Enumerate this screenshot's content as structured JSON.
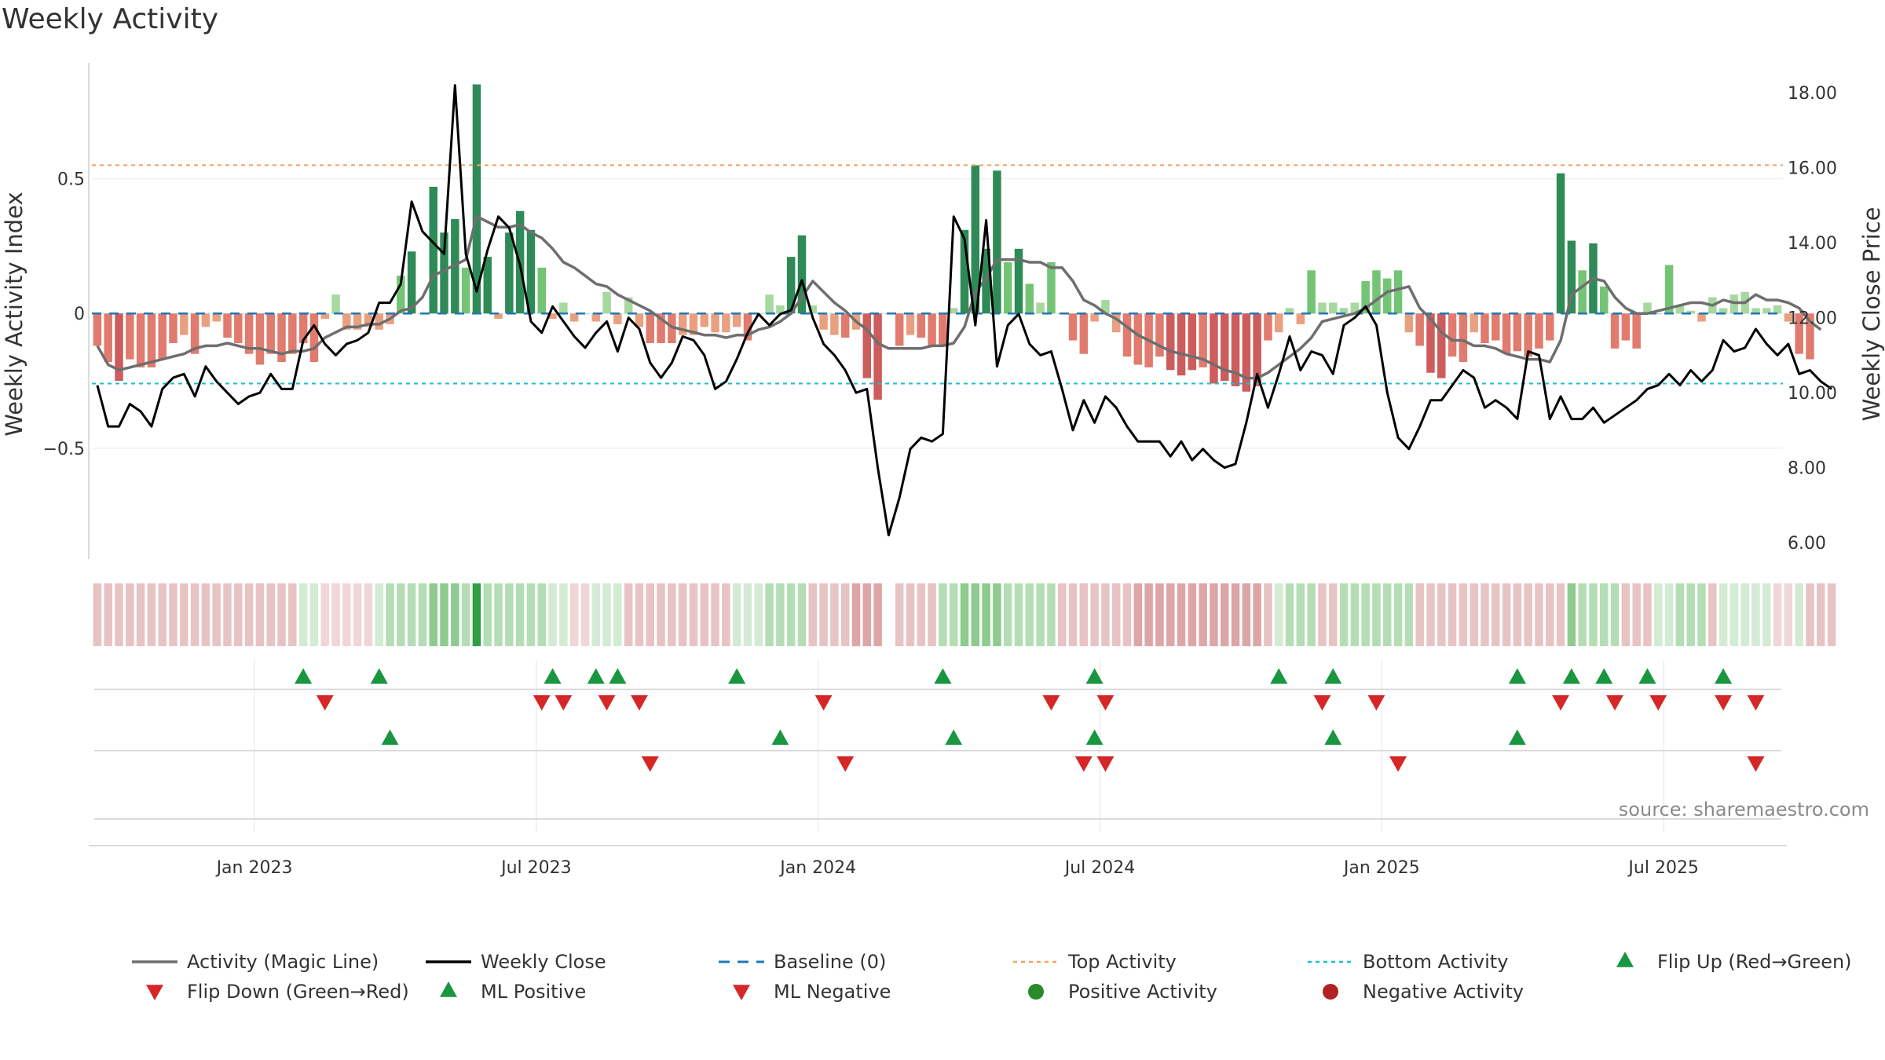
{
  "chart_data": {
    "type": "bar+line",
    "title": "Weekly Activity",
    "ylabel": "Weekly Activity Index",
    "y2label": "Weekly Close Price",
    "ylim": [
      -0.92,
      0.93
    ],
    "y2lim": [
      5.5,
      18.8
    ],
    "yticks": [
      {
        "v": 0.5,
        "label": "0.5"
      },
      {
        "v": 0,
        "label": "0"
      },
      {
        "v": -0.5,
        "label": "−0.5"
      }
    ],
    "y2ticks": [
      {
        "v": 18,
        "label": "18.00"
      },
      {
        "v": 16,
        "label": "16.00"
      },
      {
        "v": 14,
        "label": "14.00"
      },
      {
        "v": 12,
        "label": "12.00"
      },
      {
        "v": 10,
        "label": "10.00"
      },
      {
        "v": 8,
        "label": "8.00"
      },
      {
        "v": 6,
        "label": "6.00"
      }
    ],
    "xticks": [
      {
        "week": 15,
        "label": "Jan 2023"
      },
      {
        "week": 41,
        "label": "Jul 2023"
      },
      {
        "week": 67,
        "label": "Jan 2024"
      },
      {
        "week": 93,
        "label": "Jul 2024"
      },
      {
        "week": 119,
        "label": "Jan 2025"
      },
      {
        "week": 145,
        "label": "Jul 2025"
      }
    ],
    "x_range_weeks": [
      0,
      156
    ],
    "top_activity": 0.55,
    "bottom_activity": -0.26,
    "baseline": 0,
    "weekly_activity": [
      -0.12,
      -0.18,
      -0.25,
      -0.17,
      -0.2,
      -0.2,
      -0.17,
      -0.11,
      -0.08,
      -0.15,
      -0.05,
      -0.03,
      -0.09,
      -0.11,
      -0.15,
      -0.19,
      -0.15,
      -0.18,
      -0.15,
      -0.11,
      -0.18,
      -0.02,
      0.07,
      -0.06,
      -0.06,
      -0.05,
      -0.06,
      -0.04,
      0.14,
      0.23,
      0.0,
      0.47,
      0.3,
      0.35,
      0.17,
      0.85,
      0.21,
      -0.02,
      0.3,
      0.38,
      0.31,
      0.17,
      -0.02,
      0.04,
      -0.03,
      0.0,
      -0.03,
      0.08,
      -0.04,
      0.06,
      -0.05,
      -0.11,
      -0.11,
      -0.11,
      -0.08,
      -0.08,
      -0.05,
      -0.07,
      -0.07,
      -0.05,
      -0.1,
      0.0,
      0.07,
      0.03,
      0.21,
      0.29,
      0.03,
      -0.06,
      -0.08,
      -0.09,
      -0.06,
      -0.24,
      -0.32,
      0,
      -0.12,
      -0.08,
      -0.09,
      -0.12,
      -0.12,
      0.02,
      0.31,
      0.55,
      0.24,
      0.53,
      0.19,
      0.24,
      0.11,
      0.04,
      0.19,
      0.0,
      -0.1,
      -0.15,
      -0.03,
      0.05,
      -0.07,
      -0.16,
      -0.19,
      -0.2,
      -0.16,
      -0.21,
      -0.23,
      -0.21,
      -0.2,
      -0.26,
      -0.25,
      -0.27,
      -0.29,
      -0.27,
      -0.1,
      -0.07,
      0.02,
      -0.04,
      0.16,
      0.04,
      0.04,
      0.02,
      0.04,
      0.12,
      0.16,
      0.13,
      0.16,
      -0.07,
      -0.12,
      -0.22,
      -0.24,
      -0.16,
      -0.18,
      -0.07,
      -0.11,
      -0.1,
      -0.15,
      -0.14,
      -0.16,
      -0.13,
      -0.1,
      0.52,
      0.27,
      0.16,
      0.26,
      0.1,
      -0.13,
      -0.1,
      -0.13,
      0.04,
      0.0,
      0.18,
      0.03,
      0.01,
      -0.03,
      0.06,
      0.02,
      0.07,
      0.08,
      0.02,
      0.02,
      0.03,
      -0.03,
      -0.15,
      -0.17
    ],
    "magic_line": [
      -0.12,
      -0.19,
      -0.21,
      -0.2,
      -0.19,
      -0.18,
      -0.17,
      -0.16,
      -0.15,
      -0.13,
      -0.12,
      -0.12,
      -0.11,
      -0.12,
      -0.13,
      -0.13,
      -0.14,
      -0.15,
      -0.14,
      -0.14,
      -0.13,
      -0.09,
      -0.07,
      -0.05,
      -0.05,
      -0.04,
      -0.04,
      -0.02,
      0.01,
      0.02,
      0.06,
      0.14,
      0.16,
      0.18,
      0.2,
      0.36,
      0.34,
      0.32,
      0.32,
      0.33,
      0.3,
      0.28,
      0.24,
      0.19,
      0.17,
      0.14,
      0.11,
      0.1,
      0.07,
      0.05,
      0.03,
      0.01,
      -0.02,
      -0.05,
      -0.06,
      -0.07,
      -0.08,
      -0.08,
      -0.09,
      -0.08,
      -0.08,
      -0.06,
      -0.05,
      -0.03,
      0.0,
      0.06,
      0.12,
      0.08,
      0.04,
      0.01,
      -0.03,
      -0.06,
      -0.11,
      -0.13,
      -0.13,
      -0.13,
      -0.13,
      -0.12,
      -0.12,
      -0.11,
      -0.05,
      0.08,
      0.13,
      0.2,
      0.2,
      0.2,
      0.19,
      0.19,
      0.17,
      0.17,
      0.12,
      0.05,
      0.03,
      0.0,
      -0.02,
      -0.05,
      -0.08,
      -0.1,
      -0.12,
      -0.14,
      -0.15,
      -0.16,
      -0.17,
      -0.19,
      -0.21,
      -0.22,
      -0.24,
      -0.24,
      -0.22,
      -0.19,
      -0.16,
      -0.13,
      -0.09,
      -0.03,
      -0.02,
      -0.01,
      0.0,
      0.02,
      0.05,
      0.08,
      0.09,
      0.1,
      0.02,
      -0.02,
      -0.07,
      -0.1,
      -0.1,
      -0.12,
      -0.12,
      -0.13,
      -0.15,
      -0.16,
      -0.17,
      -0.17,
      -0.18,
      -0.1,
      0.07,
      0.1,
      0.13,
      0.12,
      0.06,
      0.02,
      0.0,
      0.0,
      0.01,
      0.02,
      0.03,
      0.04,
      0.04,
      0.03,
      0.05,
      0.04,
      0.04,
      0.07,
      0.05,
      0.05,
      0.04,
      0.02,
      -0.03,
      -0.06
    ],
    "weekly_close": [
      10.2,
      9.1,
      9.1,
      9.7,
      9.5,
      9.1,
      10.1,
      10.4,
      10.5,
      9.9,
      10.7,
      10.3,
      10.0,
      9.7,
      9.9,
      10.0,
      10.5,
      10.1,
      10.1,
      11.4,
      11.8,
      11.3,
      11.0,
      11.3,
      11.4,
      11.6,
      12.4,
      12.4,
      12.9,
      15.1,
      14.3,
      14.0,
      13.7,
      18.2,
      13.7,
      12.7,
      13.8,
      14.7,
      14.4,
      13.4,
      11.9,
      11.6,
      12.3,
      11.9,
      11.5,
      11.2,
      11.6,
      11.9,
      11.1,
      12.0,
      11.7,
      10.8,
      10.4,
      10.8,
      11.5,
      11.4,
      11.0,
      10.1,
      10.3,
      10.9,
      11.6,
      12.1,
      11.8,
      12.1,
      12.2,
      13.0,
      12.0,
      11.3,
      11.0,
      10.6,
      10.0,
      10.1,
      8.0,
      6.2,
      7.2,
      8.5,
      8.8,
      8.7,
      8.9,
      14.7,
      14.1,
      11.8,
      14.6,
      10.7,
      11.8,
      12.1,
      11.3,
      11.0,
      11.1,
      10.1,
      9.0,
      9.8,
      9.2,
      9.9,
      9.6,
      9.1,
      8.7,
      8.7,
      8.7,
      8.3,
      8.7,
      8.2,
      8.5,
      8.2,
      8.0,
      8.1,
      9.2,
      10.5,
      9.6,
      10.5,
      11.5,
      10.6,
      11.1,
      11.0,
      10.5,
      11.8,
      12.0,
      12.3,
      11.8,
      10.0,
      8.8,
      8.5,
      9.1,
      9.8,
      9.8,
      10.2,
      10.6,
      10.4,
      9.6,
      9.8,
      9.6,
      9.3,
      11.1,
      11.0,
      9.3,
      9.9,
      9.3,
      9.3,
      9.6,
      9.2,
      9.4,
      9.6,
      9.8,
      10.1,
      10.2,
      10.5,
      10.2,
      10.6,
      10.3,
      10.6,
      11.4,
      11.1,
      11.2,
      11.7,
      11.3,
      11.0,
      11.3,
      10.5,
      10.6,
      10.3,
      10.1
    ],
    "heat_strip": [
      -2,
      -2,
      -2,
      -2,
      -2,
      -2,
      -2,
      -2,
      -2,
      -2,
      -2,
      -2,
      -2,
      -2,
      -2,
      -2,
      -2,
      -2,
      -2,
      1,
      1,
      -1,
      -1,
      -1,
      -1,
      -1,
      1,
      2,
      2,
      2,
      2,
      3,
      3,
      3,
      2,
      4,
      2,
      2,
      2,
      2,
      2,
      2,
      1,
      1,
      -1,
      -1,
      1,
      1,
      1,
      -2,
      -2,
      -2,
      -2,
      -2,
      -2,
      -2,
      -2,
      -2,
      -2,
      1,
      1,
      1,
      2,
      2,
      2,
      2,
      -2,
      -2,
      -2,
      -2,
      -3,
      -3,
      -3,
      null,
      -2,
      -2,
      -2,
      -2,
      2,
      2,
      3,
      3,
      3,
      3,
      2,
      2,
      2,
      2,
      2,
      -2,
      -2,
      -2,
      -2,
      -2,
      -2,
      -2,
      -3,
      -3,
      -3,
      -3,
      -3,
      -3,
      -3,
      -3,
      -3,
      -3,
      -3,
      -3,
      -2,
      1,
      2,
      2,
      2,
      -2,
      -2,
      2,
      2,
      2,
      2,
      2,
      2,
      2,
      -2,
      -2,
      -2,
      -2,
      -2,
      -2,
      -2,
      -2,
      -2,
      -2,
      -2,
      -2,
      -2,
      -2,
      3,
      2,
      2,
      2,
      2,
      -2,
      -2,
      -2,
      1,
      1,
      2,
      2,
      2,
      -2,
      1,
      1,
      1,
      1,
      1,
      -1,
      -1,
      1,
      -2,
      -2,
      -2
    ],
    "flip_up_weeks": [
      19,
      26,
      42,
      46,
      48,
      59,
      78,
      92,
      109,
      114,
      131,
      136,
      139,
      143,
      150
    ],
    "flip_down_weeks": [
      21,
      41,
      43,
      47,
      50,
      67,
      88,
      93,
      113,
      118,
      135,
      140,
      144,
      150,
      153
    ],
    "ml_positive_weeks": [
      27,
      63,
      79,
      92,
      114,
      131
    ],
    "ml_negative_weeks": [
      51,
      69,
      91,
      93,
      120,
      153
    ],
    "legend": [
      "Activity (Magic Line)",
      "Weekly Close",
      "Baseline (0)",
      "Top Activity",
      "Bottom Activity",
      "Flip Up (Red→Green)",
      "Flip Down (Green→Red)",
      "ML Positive",
      "ML Negative",
      "Positive Activity",
      "Negative Activity"
    ],
    "legend_placement": "bottom",
    "source": "source: sharemaestro.com"
  },
  "colors": {
    "magic_line": "#6e6e6e",
    "close": "#000000",
    "baseline": "#1f77b4",
    "top": "#f4a15d",
    "bottom": "#17becf",
    "flip_up": "#1a9641",
    "flip_down": "#d62728",
    "positive_dot": "#2a8a2a",
    "negative_dot": "#b22222",
    "pos_bars": [
      "#a6d8a0",
      "#74c476",
      "#2e8b57"
    ],
    "neg_bars": [
      "#e9a080",
      "#e07b6e",
      "#cd5c5c"
    ]
  }
}
